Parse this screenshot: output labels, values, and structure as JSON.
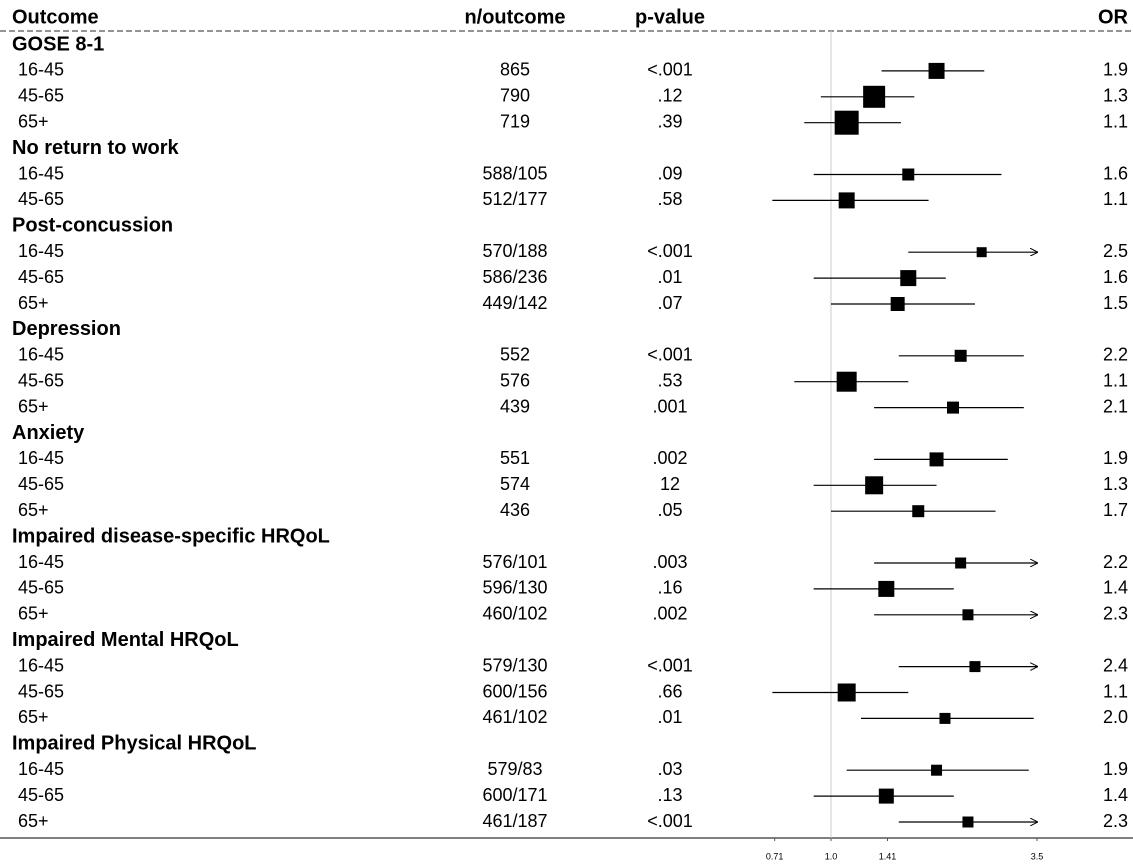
{
  "chart_data": {
    "type": "forest",
    "headers": {
      "outcome": "Outcome",
      "n": "n/outcome",
      "p": "p-value",
      "or": "OR"
    },
    "xscale": "log",
    "xlim": [
      0.6,
      3.5
    ],
    "xticks": [
      0.71,
      {
        "value": 1,
        "label": "1.0"
      },
      1.41,
      3.5
    ],
    "reference": 1,
    "color": "#000000",
    "groups": [
      {
        "name": "GOSE 8-1",
        "rows": [
          {
            "label": "16-45",
            "n": "865",
            "p": "<.001",
            "or": 1.9,
            "or_label": "1.9",
            "ci": [
              1.36,
              2.54
            ],
            "weight": 16
          },
          {
            "label": "45-65",
            "n": "790",
            "p": ".12",
            "or": 1.3,
            "or_label": "1.3",
            "ci": [
              0.94,
              1.66
            ],
            "weight": 22
          },
          {
            "label": "65+",
            "n": "719",
            "p": ".39",
            "or": 1.1,
            "or_label": "1.1",
            "ci": [
              0.85,
              1.53
            ],
            "weight": 24
          }
        ]
      },
      {
        "name": "No return to work",
        "rows": [
          {
            "label": "16-45",
            "n": "588/105",
            "p": ".09",
            "or": 1.6,
            "or_label": "1.6",
            "ci": [
              0.9,
              2.82
            ],
            "weight": 12
          },
          {
            "label": "45-65",
            "n": "512/177",
            "p": ".58",
            "or": 1.1,
            "or_label": "1.1",
            "ci": [
              0.7,
              1.81
            ],
            "weight": 16
          }
        ]
      },
      {
        "name": "Post-concussion",
        "rows": [
          {
            "label": "16-45",
            "n": "570/188",
            "p": "<.001",
            "or": 2.5,
            "or_label": "2.5",
            "ci": [
              1.6,
              4.0
            ],
            "weight": 10
          },
          {
            "label": "45-65",
            "n": "586/236",
            "p": ".01",
            "or": 1.6,
            "or_label": "1.6",
            "ci": [
              0.9,
              2.01
            ],
            "weight": 16
          },
          {
            "label": "65+",
            "n": "449/142",
            "p": ".07",
            "or": 1.5,
            "or_label": "1.5",
            "ci": [
              1.0,
              2.4
            ],
            "weight": 14
          }
        ]
      },
      {
        "name": "Depression",
        "rows": [
          {
            "label": "16-45",
            "n": "552",
            "p": "<.001",
            "or": 2.2,
            "or_label": "2.2",
            "ci": [
              1.51,
              3.23
            ],
            "weight": 12
          },
          {
            "label": "45-65",
            "n": "576",
            "p": ".53",
            "or": 1.1,
            "or_label": "1.1",
            "ci": [
              0.8,
              1.6
            ],
            "weight": 20
          },
          {
            "label": "65+",
            "n": "439",
            "p": ".001",
            "or": 2.1,
            "or_label": "2.1",
            "ci": [
              1.3,
              3.23
            ],
            "weight": 12
          }
        ]
      },
      {
        "name": "Anxiety",
        "rows": [
          {
            "label": "16-45",
            "n": "551",
            "p": ".002",
            "or": 1.9,
            "or_label": "1.9",
            "ci": [
              1.3,
              2.93
            ],
            "weight": 14
          },
          {
            "label": "45-65",
            "n": "574",
            "p": "12",
            "or": 1.3,
            "or_label": "1.3",
            "ci": [
              0.9,
              1.9
            ],
            "weight": 18
          },
          {
            "label": "65+",
            "n": "436",
            "p": ".05",
            "or": 1.7,
            "or_label": "1.7",
            "ci": [
              1.0,
              2.72
            ],
            "weight": 12
          }
        ]
      },
      {
        "name": "Impaired disease-specific HRQoL",
        "rows": [
          {
            "label": "16-45",
            "n": "576/101",
            "p": ".003",
            "or": 2.2,
            "or_label": "2.2",
            "ci": [
              1.3,
              4.0
            ],
            "weight": 11
          },
          {
            "label": "45-65",
            "n": "596/130",
            "p": ".16",
            "or": 1.4,
            "or_label": "1.4",
            "ci": [
              0.9,
              2.11
            ],
            "weight": 16
          },
          {
            "label": "65+",
            "n": "460/102",
            "p": ".002",
            "or": 2.3,
            "or_label": "2.3",
            "ci": [
              1.3,
              4.0
            ],
            "weight": 11
          }
        ]
      },
      {
        "name": "Impaired Mental HRQoL",
        "rows": [
          {
            "label": "16-45",
            "n": "579/130",
            "p": "<.001",
            "or": 2.4,
            "or_label": "2.4",
            "ci": [
              1.51,
              4.0
            ],
            "weight": 11
          },
          {
            "label": "45-65",
            "n": "600/156",
            "p": ".66",
            "or": 1.1,
            "or_label": "1.1",
            "ci": [
              0.7,
              1.6
            ],
            "weight": 18
          },
          {
            "label": "65+",
            "n": "461/102",
            "p": ".01",
            "or": 2.0,
            "or_label": "2.0",
            "ci": [
              1.2,
              3.43
            ],
            "weight": 11
          }
        ]
      },
      {
        "name": "Impaired Physical HRQoL",
        "rows": [
          {
            "label": "16-45",
            "n": "579/83",
            "p": ".03",
            "or": 1.9,
            "or_label": "1.9",
            "ci": [
              1.1,
              3.33
            ],
            "weight": 11
          },
          {
            "label": "45-65",
            "n": "600/171",
            "p": ".13",
            "or": 1.4,
            "or_label": "1.4",
            "ci": [
              0.9,
              2.11
            ],
            "weight": 15
          },
          {
            "label": "65+",
            "n": "461/187",
            "p": "<.001",
            "or": 2.3,
            "or_label": "2.3",
            "ci": [
              1.51,
              3.54
            ],
            "weight": 11
          }
        ]
      }
    ]
  }
}
